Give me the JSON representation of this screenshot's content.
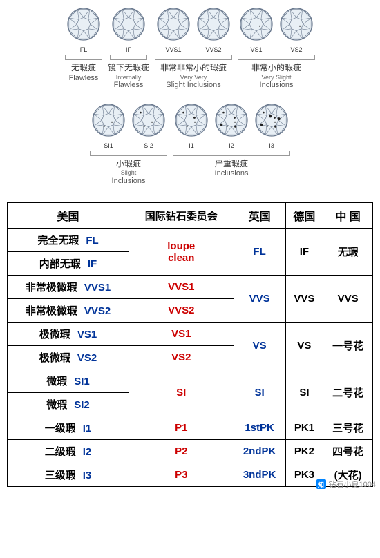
{
  "diamond": {
    "stroke": "#6b7a8f",
    "fill": "#e8eff5",
    "size": 50
  },
  "chart": {
    "row1": [
      {
        "codes": [
          "FL"
        ],
        "cn": "无瑕疵",
        "en1": "",
        "en2": "Flawless"
      },
      {
        "codes": [
          "IF"
        ],
        "cn": "镜下无瑕疵",
        "en1": "Internally",
        "en2": "Flawless"
      },
      {
        "codes": [
          "VVS1",
          "VVS2"
        ],
        "cn": "非常非常小的瑕疵",
        "en1": "Very Very",
        "en2": "Slight Inclusions"
      },
      {
        "codes": [
          "VS1",
          "VS2"
        ],
        "cn": "非常小的瑕疵",
        "en1": "Very Slight",
        "en2": "Inclusions"
      }
    ],
    "row2": [
      {
        "codes": [
          "SI1",
          "SI2"
        ],
        "cn": "小瑕疵",
        "en1": "Slight",
        "en2": "Inclusions"
      },
      {
        "codes": [
          "I1",
          "I2",
          "I3"
        ],
        "cn": "严重瑕疵",
        "en1": "",
        "en2": "Inclusions"
      }
    ]
  },
  "table": {
    "headers": {
      "us": "美国",
      "intl": "国际钻石委员会",
      "uk": "英国",
      "de": "德国",
      "cn": "中 国"
    },
    "rows": [
      {
        "us_cn": "完全无瑕",
        "us_code": "FL",
        "intl": "loupe clean",
        "intl_span": 2,
        "uk": "FL",
        "uk_span": 2,
        "de": "IF",
        "de_span": 2,
        "cn": "无瑕",
        "cn_span": 2,
        "intl_color": "red",
        "uk_color": "blue",
        "de_color": "blk",
        "cn_color": "blk"
      },
      {
        "us_cn": "内部无瑕",
        "us_code": "IF"
      },
      {
        "us_cn": "非常极微瑕",
        "us_code": "VVS1",
        "intl": "VVS1",
        "intl_span": 1,
        "uk": "VVS",
        "uk_span": 2,
        "de": "VVS",
        "de_span": 2,
        "cn": "VVS",
        "cn_span": 2,
        "intl_color": "red",
        "uk_color": "blue",
        "de_color": "blk",
        "cn_color": "blk"
      },
      {
        "us_cn": "非常极微瑕",
        "us_code": "VVS2",
        "intl": "VVS2",
        "intl_span": 1,
        "intl_color": "red"
      },
      {
        "us_cn": "极微瑕",
        "us_code": "VS1",
        "intl": "VS1",
        "intl_span": 1,
        "uk": "VS",
        "uk_span": 2,
        "de": "VS",
        "de_span": 2,
        "cn": "一号花",
        "cn_span": 2,
        "intl_color": "red",
        "uk_color": "blue",
        "de_color": "blk",
        "cn_color": "blk"
      },
      {
        "us_cn": "极微瑕",
        "us_code": "VS2",
        "intl": "VS2",
        "intl_span": 1,
        "intl_color": "red"
      },
      {
        "us_cn": "微瑕",
        "us_code": "SI1",
        "intl": "SI",
        "intl_span": 2,
        "uk": "SI",
        "uk_span": 2,
        "de": "SI",
        "de_span": 2,
        "cn": "二号花",
        "cn_span": 2,
        "intl_color": "red",
        "uk_color": "blue",
        "de_color": "blk",
        "cn_color": "blk"
      },
      {
        "us_cn": "微瑕",
        "us_code": "SI2"
      },
      {
        "us_cn": "一级瑕",
        "us_code": "I1",
        "intl": "P1",
        "intl_span": 1,
        "uk": "1stPK",
        "uk_span": 1,
        "de": "PK1",
        "de_span": 1,
        "cn": "三号花",
        "cn_span": 1,
        "intl_color": "red",
        "uk_color": "blue",
        "de_color": "blk",
        "cn_color": "blk"
      },
      {
        "us_cn": "二级瑕",
        "us_code": "I2",
        "intl": "P2",
        "intl_span": 1,
        "uk": "2ndPK",
        "uk_span": 1,
        "de": "PK2",
        "de_span": 1,
        "cn": "四号花",
        "cn_span": 1,
        "intl_color": "red",
        "uk_color": "blue",
        "de_color": "blk",
        "cn_color": "blk"
      },
      {
        "us_cn": "三级瑕",
        "us_code": "I3",
        "intl": "P3",
        "intl_span": 1,
        "uk": "3ndPK",
        "uk_span": 1,
        "de": "PK3",
        "de_span": 1,
        "cn": "(大花)",
        "cn_span": 1,
        "intl_color": "red",
        "uk_color": "blue",
        "de_color": "blk",
        "cn_color": "blk"
      }
    ]
  },
  "watermark": {
    "icon": "知",
    "text": "钻石小夏1004"
  }
}
